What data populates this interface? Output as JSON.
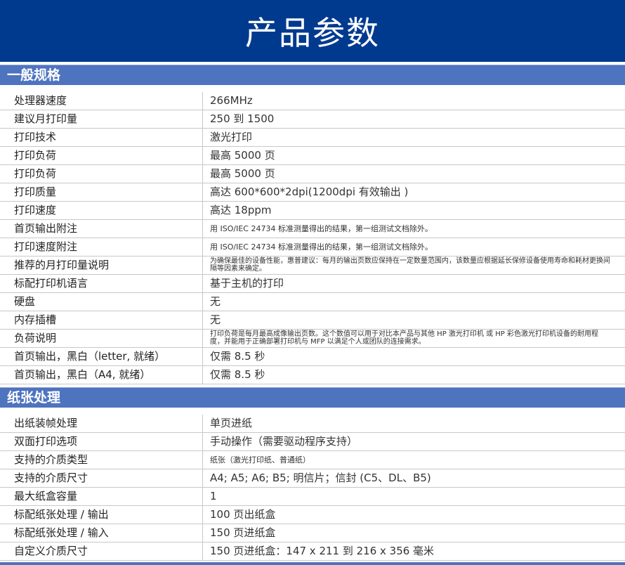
{
  "title": "产品参数",
  "sections": [
    {
      "title": "一般规格",
      "rows": [
        {
          "k": "处理器速度",
          "v": "266MHz"
        },
        {
          "k": "建议月打印量",
          "v": "250 到 1500"
        },
        {
          "k": "打印技术",
          "v": "激光打印"
        },
        {
          "k": "打印负荷",
          "v": "最高 5000 页"
        },
        {
          "k": "打印负荷",
          "v": "最高 5000 页"
        },
        {
          "k": "打印质量",
          "v": "高达 600*600*2dpi(1200dpi 有效输出 )"
        },
        {
          "k": "打印速度",
          "v": "高达 18ppm"
        },
        {
          "k": "首页输出附注",
          "v": "用 ISO/IEC 24734 标准测量得出的结果，第一组测试文档除外。",
          "size": "s"
        },
        {
          "k": "打印速度附注",
          "v": "用 ISO/IEC 24734 标准测量得出的结果，第一组测试文档除外。",
          "size": "s"
        },
        {
          "k": "推荐的月打印量说明",
          "v": "为确保最佳的设备性能，惠普建议：每月的输出页数应保持在一定数量范围内，该数量应根据延长保修设备使用寿命和耗材更换间隔等因素来确定。",
          "size": "xs"
        },
        {
          "k": "标配打印机语言",
          "v": "基于主机的打印"
        },
        {
          "k": "硬盘",
          "v": "无"
        },
        {
          "k": "内存插槽",
          "v": "无"
        },
        {
          "k": "负荷说明",
          "v": "打印负荷是每月最高成像输出页数。这个数值可以用于对比本产品与其他 HP 激光打印机 或 HP 彩色激光打印机设备的耐用程度，并能用于正确部署打印机与 MFP 以满足个人或团队的连接需求。",
          "size": "xs"
        },
        {
          "k": "首页输出，黑白（letter, 就绪）",
          "v": "仅需 8.5 秒"
        },
        {
          "k": "首页输出，黑白（A4, 就绪）",
          "v": "仅需 8.5 秒"
        }
      ]
    },
    {
      "title": "纸张处理",
      "rows": [
        {
          "k": "出纸装帧处理",
          "v": "单页进纸"
        },
        {
          "k": "双面打印选项",
          "v": "手动操作（需要驱动程序支持）"
        },
        {
          "k": "支持的介质类型",
          "v": "纸张（激光打印纸、普通纸）",
          "size": "s"
        },
        {
          "k": "支持的介质尺寸",
          "v": "A4; A5; A6; B5; 明信片；信封 (C5、DL、B5)"
        },
        {
          "k": "最大纸盒容量",
          "v": "1"
        },
        {
          "k": "标配纸张处理 / 输出",
          "v": "100 页出纸盒"
        },
        {
          "k": "标配纸张处理 / 输入",
          "v": "150 页进纸盒"
        },
        {
          "k": "自定义介质尺寸",
          "v": "150 页进纸盒：147 x 211 到 216 x 356 毫米"
        }
      ]
    }
  ]
}
